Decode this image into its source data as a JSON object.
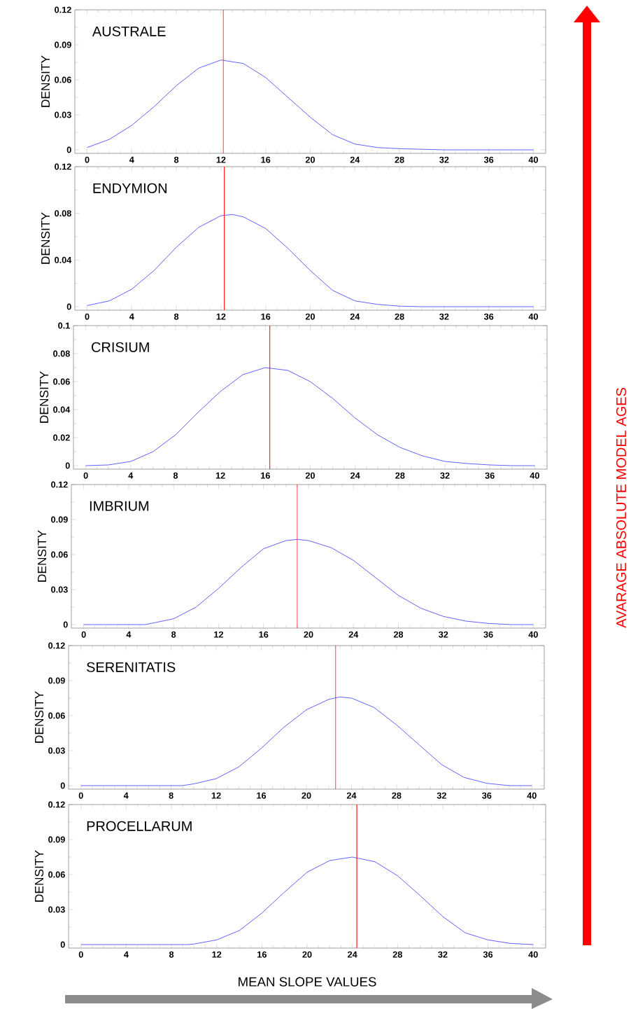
{
  "chart_data": [
    {
      "type": "line",
      "title": "AUSTRALE",
      "ylabel": "DENSITY",
      "color": "#3a3aff",
      "x": [
        0,
        2,
        4,
        6,
        8,
        10,
        12,
        14,
        16,
        18,
        20,
        22,
        24,
        26,
        28,
        30,
        32,
        40
      ],
      "values": [
        0.002,
        0.009,
        0.021,
        0.037,
        0.055,
        0.07,
        0.077,
        0.074,
        0.062,
        0.045,
        0.028,
        0.013,
        0.005,
        0.002,
        0.001,
        0.0005,
        0,
        0
      ],
      "xlim": [
        -1.1,
        41.1
      ],
      "ylim": [
        -0.003,
        0.12
      ],
      "xticks": [
        0,
        4,
        8,
        12,
        16,
        20,
        24,
        28,
        32,
        36,
        40
      ],
      "yticks": [
        0,
        0.03,
        0.06,
        0.09,
        0.12
      ],
      "ref_lines": [
        {
          "axis": "x",
          "value": 12.2,
          "color": "#ff0000"
        }
      ]
    },
    {
      "type": "line",
      "title": "ENDYMION",
      "ylabel": "DENSITY",
      "color": "#3a3aff",
      "x": [
        0,
        2,
        4,
        6,
        8,
        10,
        12,
        13,
        14,
        16,
        18,
        20,
        22,
        24,
        26,
        28,
        30,
        40
      ],
      "values": [
        0.001,
        0.005,
        0.015,
        0.031,
        0.051,
        0.068,
        0.078,
        0.079,
        0.077,
        0.067,
        0.05,
        0.031,
        0.014,
        0.005,
        0.002,
        0.0005,
        0,
        0
      ],
      "xlim": [
        -1.1,
        41.1
      ],
      "ylim": [
        -0.003,
        0.12
      ],
      "xticks": [
        0,
        4,
        8,
        12,
        16,
        20,
        24,
        28,
        32,
        36,
        40
      ],
      "yticks": [
        0,
        0.04,
        0.08,
        0.12
      ],
      "ref_lines": [
        {
          "axis": "x",
          "value": 12.3,
          "color": "#ff0000"
        }
      ]
    },
    {
      "type": "line",
      "title": "CRISIUM",
      "ylabel": "DENSITY",
      "color": "#3a3aff",
      "x": [
        0,
        2,
        4,
        6,
        8,
        10,
        12,
        14,
        16,
        18,
        20,
        22,
        24,
        26,
        28,
        30,
        32,
        34,
        36,
        38,
        40
      ],
      "values": [
        0,
        0.0005,
        0.003,
        0.01,
        0.022,
        0.038,
        0.053,
        0.065,
        0.07,
        0.068,
        0.06,
        0.048,
        0.034,
        0.022,
        0.013,
        0.007,
        0.003,
        0.0015,
        0.0005,
        0,
        0
      ],
      "xlim": [
        -1.1,
        41.1
      ],
      "ylim": [
        -0.0025,
        0.1
      ],
      "xticks": [
        0,
        4,
        8,
        12,
        16,
        20,
        24,
        28,
        32,
        36,
        40
      ],
      "yticks": [
        0,
        0.02,
        0.04,
        0.06,
        0.08,
        0.1
      ],
      "ref_lines": [
        {
          "axis": "x",
          "value": 16.4,
          "color": "#ff0000"
        }
      ]
    },
    {
      "type": "line",
      "title": "IMBRIUM",
      "ylabel": "DENSITY",
      "color": "#3a3aff",
      "x": [
        0,
        5.5,
        8,
        10,
        12,
        14,
        16,
        18,
        19,
        20,
        22,
        24,
        26,
        28,
        30,
        32,
        34,
        36,
        38,
        40
      ],
      "values": [
        0,
        0,
        0.005,
        0.015,
        0.031,
        0.049,
        0.065,
        0.072,
        0.073,
        0.072,
        0.066,
        0.055,
        0.04,
        0.025,
        0.014,
        0.007,
        0.003,
        0.001,
        0,
        0
      ],
      "xlim": [
        -1.1,
        41.1
      ],
      "ylim": [
        -0.003,
        0.12
      ],
      "xticks": [
        0,
        4,
        8,
        12,
        16,
        20,
        24,
        28,
        32,
        36,
        40
      ],
      "yticks": [
        0,
        0.03,
        0.06,
        0.09,
        0.12
      ],
      "ref_lines": [
        {
          "axis": "x",
          "value": 19,
          "color": "#ff0000"
        }
      ]
    },
    {
      "type": "line",
      "title": "SERENITATIS",
      "ylabel": "DENSITY",
      "color": "#3a3aff",
      "x": [
        0,
        9,
        10,
        12,
        14,
        16,
        18,
        20,
        22,
        23,
        24,
        26,
        28,
        30,
        32,
        34,
        36,
        38,
        40
      ],
      "values": [
        0,
        0,
        0.0015,
        0.006,
        0.016,
        0.032,
        0.05,
        0.065,
        0.074,
        0.076,
        0.075,
        0.067,
        0.052,
        0.035,
        0.018,
        0.007,
        0.002,
        0,
        0
      ],
      "xlim": [
        -1.1,
        41.1
      ],
      "ylim": [
        -0.003,
        0.12
      ],
      "xticks": [
        0,
        4,
        8,
        12,
        16,
        20,
        24,
        28,
        32,
        36,
        40
      ],
      "yticks": [
        0,
        0.03,
        0.06,
        0.09,
        0.12
      ],
      "ref_lines": [
        {
          "axis": "x",
          "value": 22.6,
          "color": "#ff0000"
        }
      ]
    },
    {
      "type": "line",
      "title": "PROCELLARUM",
      "ylabel": "DENSITY",
      "xlabel": "MEAN SLOPE VALUES",
      "color": "#3a3aff",
      "x": [
        0,
        9.5,
        10,
        12,
        14,
        16,
        18,
        20,
        22,
        24,
        26,
        28,
        30,
        32,
        34,
        36,
        38,
        40
      ],
      "values": [
        0,
        0,
        0.0005,
        0.004,
        0.012,
        0.027,
        0.045,
        0.062,
        0.072,
        0.075,
        0.071,
        0.059,
        0.042,
        0.024,
        0.01,
        0.004,
        0.001,
        0
      ],
      "xlim": [
        -1.1,
        41.1
      ],
      "ylim": [
        -0.003,
        0.12
      ],
      "xticks": [
        0,
        4,
        8,
        12,
        16,
        20,
        24,
        28,
        32,
        36,
        40
      ],
      "yticks": [
        0,
        0.03,
        0.06,
        0.09,
        0.12
      ],
      "ref_lines": [
        {
          "axis": "x",
          "value": 24.4,
          "color": "#ff0000"
        }
      ],
      "annotations": [
        "AVARAGE ABSOLUTE MODEL AGES"
      ]
    }
  ]
}
